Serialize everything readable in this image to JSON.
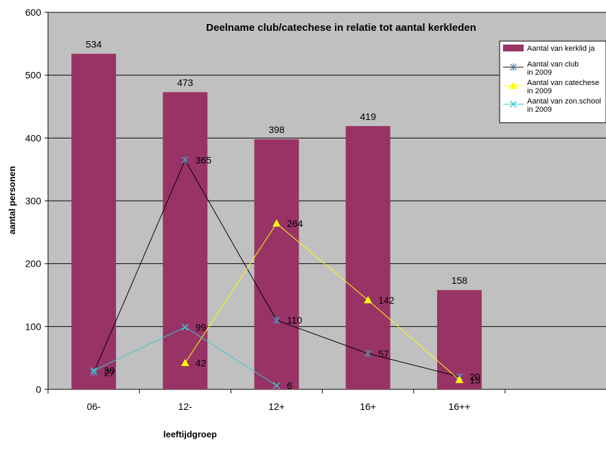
{
  "chart_data": {
    "type": "bar",
    "title": "Deelname club/catechese in relatie tot aantal kerkleden",
    "xlabel": "leeftijdgroep",
    "ylabel": "aantal personen",
    "categories": [
      "06-",
      "12-",
      "12+",
      "16+",
      "16++"
    ],
    "ylim": [
      0,
      600
    ],
    "yticks": [
      0,
      100,
      200,
      300,
      400,
      500,
      600
    ],
    "legend_position": "top-right",
    "plot_background": "#c0c0c0",
    "series": [
      {
        "name": "Aantal van kerklid ja",
        "kind": "bar",
        "color": "#993366",
        "values": [
          534,
          473,
          398,
          419,
          158
        ],
        "labels": [
          "534",
          "473",
          "398",
          "419",
          "158"
        ]
      },
      {
        "name": "Aantal van club  in 2009",
        "kind": "line",
        "marker": "asterisk",
        "line_color": "#000000",
        "marker_color": "#5b8fb9",
        "values": [
          27,
          365,
          110,
          57,
          20
        ],
        "labels": [
          "27",
          "365",
          "110",
          "57",
          "20"
        ]
      },
      {
        "name": "Aantal van catechese  in 2009",
        "kind": "line",
        "marker": "triangle",
        "line_color": "#ffff00",
        "marker_color": "#ffff00",
        "values": [
          null,
          42,
          264,
          142,
          15
        ],
        "labels": [
          "",
          "42",
          "264",
          "142",
          "15"
        ]
      },
      {
        "name": "Aantal van zon.school in 2009",
        "kind": "line",
        "marker": "x",
        "line_color": "#33cccc",
        "marker_color": "#33cccc",
        "values": [
          30,
          99,
          6,
          null,
          null
        ],
        "labels": [
          "30",
          "99",
          "6",
          "",
          ""
        ]
      }
    ]
  }
}
